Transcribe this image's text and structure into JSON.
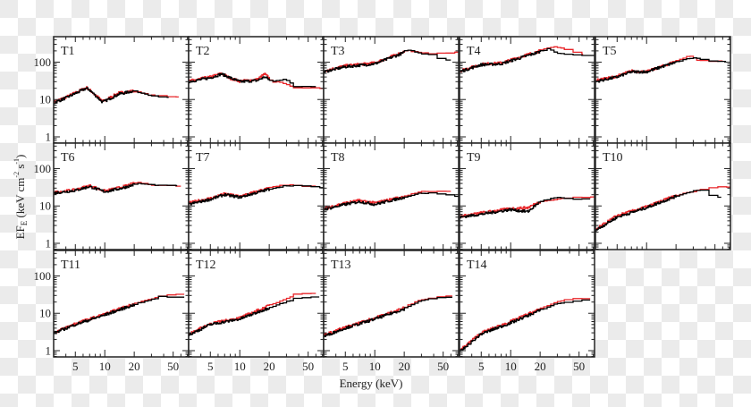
{
  "chart_data": {
    "type": "line",
    "xlabel": "Energy (keV)",
    "ylabel": {
      "main": "EF",
      "sub": "E",
      "rest1": " (keV cm",
      "sup1": "-2",
      "rest2": " s",
      "sup2": "-1",
      "rest3": ")"
    },
    "xscale": "log",
    "yscale": "log",
    "xlim": [
      3,
      72
    ],
    "ylim": [
      0.68,
      480
    ],
    "x_tick_labels": [
      5,
      10,
      20,
      50
    ],
    "y_tick_labels": [
      1,
      10,
      100
    ],
    "grid": false,
    "colors": {
      "series_a": "#000000",
      "series_b": "#e8262a",
      "frame": "#222222"
    },
    "panels": [
      {
        "label": "T1",
        "black": [
          [
            3,
            8
          ],
          [
            4,
            11
          ],
          [
            6.5,
            20
          ],
          [
            7,
            18
          ],
          [
            9.5,
            8.5
          ],
          [
            10,
            9
          ],
          [
            14,
            14
          ],
          [
            20,
            17
          ],
          [
            30,
            13
          ],
          [
            45,
            11.5
          ]
        ],
        "red": [
          [
            3,
            8.5
          ],
          [
            4,
            11.5
          ],
          [
            6.5,
            21
          ],
          [
            7,
            18
          ],
          [
            9.5,
            9
          ],
          [
            10,
            9.5
          ],
          [
            14,
            15
          ],
          [
            20,
            17
          ],
          [
            30,
            13
          ],
          [
            57,
            11.5
          ]
        ]
      },
      {
        "label": "T2",
        "black": [
          [
            3,
            30
          ],
          [
            5,
            38
          ],
          [
            6.5,
            48
          ],
          [
            8,
            38
          ],
          [
            10,
            30
          ],
          [
            15,
            32
          ],
          [
            18,
            40
          ],
          [
            22,
            30
          ],
          [
            30,
            36
          ],
          [
            38,
            22
          ],
          [
            60,
            22
          ]
        ],
        "red": [
          [
            3,
            31
          ],
          [
            5,
            40
          ],
          [
            6.5,
            50
          ],
          [
            8,
            37
          ],
          [
            10,
            31
          ],
          [
            15,
            34
          ],
          [
            18,
            48
          ],
          [
            22,
            30
          ],
          [
            30,
            27
          ],
          [
            38,
            20
          ],
          [
            72,
            20
          ]
        ]
      },
      {
        "label": "T3",
        "black": [
          [
            3,
            55
          ],
          [
            5,
            75
          ],
          [
            10,
            90
          ],
          [
            20,
            180
          ],
          [
            22,
            220
          ],
          [
            30,
            170
          ],
          [
            45,
            160
          ],
          [
            50,
            115
          ],
          [
            60,
            115
          ]
        ],
        "red": [
          [
            3,
            58
          ],
          [
            5,
            80
          ],
          [
            10,
            95
          ],
          [
            20,
            190
          ],
          [
            22,
            210
          ],
          [
            30,
            175
          ],
          [
            45,
            170
          ],
          [
            50,
            180
          ],
          [
            72,
            180
          ]
        ]
      },
      {
        "label": "T4",
        "black": [
          [
            3,
            55
          ],
          [
            5,
            85
          ],
          [
            8,
            90
          ],
          [
            15,
            150
          ],
          [
            25,
            230
          ],
          [
            30,
            180
          ],
          [
            50,
            150
          ],
          [
            72,
            150
          ]
        ],
        "red": [
          [
            3,
            58
          ],
          [
            5,
            88
          ],
          [
            8,
            95
          ],
          [
            15,
            160
          ],
          [
            25,
            240
          ],
          [
            30,
            260
          ],
          [
            45,
            200
          ],
          [
            55,
            160
          ]
        ]
      },
      {
        "label": "T5",
        "black": [
          [
            3,
            30
          ],
          [
            5,
            40
          ],
          [
            7,
            55
          ],
          [
            10,
            55
          ],
          [
            20,
            100
          ],
          [
            30,
            130
          ],
          [
            45,
            110
          ],
          [
            65,
            105
          ]
        ],
        "red": [
          [
            3,
            32
          ],
          [
            5,
            42
          ],
          [
            7,
            58
          ],
          [
            10,
            55
          ],
          [
            20,
            105
          ],
          [
            28,
            150
          ],
          [
            35,
            110
          ],
          [
            60,
            105
          ]
        ]
      },
      {
        "label": "T6",
        "black": [
          [
            3,
            22
          ],
          [
            5,
            26
          ],
          [
            7,
            33
          ],
          [
            10,
            24
          ],
          [
            15,
            30
          ],
          [
            22,
            40
          ],
          [
            30,
            37
          ],
          [
            55,
            34
          ]
        ],
        "red": [
          [
            3,
            23
          ],
          [
            5,
            27
          ],
          [
            7,
            35
          ],
          [
            10,
            25
          ],
          [
            15,
            32
          ],
          [
            22,
            43
          ],
          [
            30,
            37
          ],
          [
            60,
            34
          ]
        ]
      },
      {
        "label": "T7",
        "black": [
          [
            3,
            11
          ],
          [
            5,
            15
          ],
          [
            7,
            20
          ],
          [
            10,
            17
          ],
          [
            20,
            28
          ],
          [
            30,
            35
          ],
          [
            45,
            35
          ],
          [
            72,
            30
          ]
        ],
        "red": [
          [
            3,
            12
          ],
          [
            5,
            16
          ],
          [
            7,
            21
          ],
          [
            10,
            18
          ],
          [
            20,
            30
          ],
          [
            30,
            37
          ],
          [
            45,
            34
          ],
          [
            60,
            33
          ]
        ]
      },
      {
        "label": "T8",
        "black": [
          [
            3,
            8
          ],
          [
            5,
            11
          ],
          [
            7,
            13
          ],
          [
            10,
            11
          ],
          [
            20,
            17
          ],
          [
            30,
            22
          ],
          [
            45,
            22
          ],
          [
            72,
            18
          ]
        ],
        "red": [
          [
            3,
            8.5
          ],
          [
            5,
            12
          ],
          [
            7,
            14
          ],
          [
            10,
            12
          ],
          [
            20,
            18
          ],
          [
            30,
            24
          ],
          [
            45,
            24
          ],
          [
            60,
            25
          ]
        ]
      },
      {
        "label": "T9",
        "black": [
          [
            3,
            5
          ],
          [
            5,
            6
          ],
          [
            10,
            8
          ],
          [
            15,
            7
          ],
          [
            20,
            13
          ],
          [
            30,
            17
          ],
          [
            45,
            15
          ],
          [
            65,
            15
          ]
        ],
        "red": [
          [
            3,
            5.2
          ],
          [
            5,
            6.5
          ],
          [
            10,
            8.5
          ],
          [
            15,
            9
          ],
          [
            20,
            13
          ],
          [
            30,
            15
          ],
          [
            45,
            17
          ],
          [
            72,
            17
          ]
        ]
      },
      {
        "label": "T10",
        "black": [
          [
            3,
            2.2
          ],
          [
            5,
            5
          ],
          [
            10,
            9
          ],
          [
            20,
            18
          ],
          [
            30,
            25
          ],
          [
            45,
            28
          ],
          [
            50,
            17
          ],
          [
            58,
            17
          ]
        ],
        "red": [
          [
            3,
            2.3
          ],
          [
            5,
            5.5
          ],
          [
            10,
            9.5
          ],
          [
            20,
            19
          ],
          [
            30,
            24
          ],
          [
            45,
            30
          ],
          [
            72,
            33
          ]
        ]
      },
      {
        "label": "T11",
        "black": [
          [
            3,
            2.9
          ],
          [
            5,
            5
          ],
          [
            10,
            9
          ],
          [
            20,
            17
          ],
          [
            40,
            28
          ],
          [
            65,
            26
          ]
        ],
        "red": [
          [
            3,
            3
          ],
          [
            5,
            5.3
          ],
          [
            10,
            9.5
          ],
          [
            20,
            18
          ],
          [
            40,
            29
          ],
          [
            65,
            34
          ]
        ]
      },
      {
        "label": "T12",
        "black": [
          [
            3,
            2.6
          ],
          [
            5,
            5
          ],
          [
            10,
            7
          ],
          [
            20,
            14
          ],
          [
            30,
            20
          ],
          [
            40,
            25
          ],
          [
            65,
            28
          ]
        ],
        "red": [
          [
            3,
            2.8
          ],
          [
            5,
            5.3
          ],
          [
            10,
            7.5
          ],
          [
            20,
            16
          ],
          [
            30,
            24
          ],
          [
            40,
            34
          ],
          [
            60,
            35
          ]
        ]
      },
      {
        "label": "T13",
        "black": [
          [
            3,
            2.4
          ],
          [
            5,
            4
          ],
          [
            10,
            7
          ],
          [
            20,
            13
          ],
          [
            30,
            22
          ],
          [
            62,
            28
          ]
        ],
        "red": [
          [
            3,
            2.6
          ],
          [
            5,
            4.2
          ],
          [
            10,
            7.5
          ],
          [
            20,
            14
          ],
          [
            30,
            23
          ],
          [
            62,
            30
          ]
        ]
      },
      {
        "label": "T14",
        "black": [
          [
            3,
            0.9
          ],
          [
            5,
            2.8
          ],
          [
            10,
            5.5
          ],
          [
            20,
            12
          ],
          [
            30,
            18
          ],
          [
            40,
            20
          ],
          [
            65,
            23
          ]
        ],
        "red": [
          [
            3,
            1.0
          ],
          [
            5,
            3.0
          ],
          [
            10,
            6
          ],
          [
            20,
            13
          ],
          [
            30,
            20
          ],
          [
            40,
            24
          ],
          [
            65,
            25
          ]
        ]
      }
    ]
  }
}
